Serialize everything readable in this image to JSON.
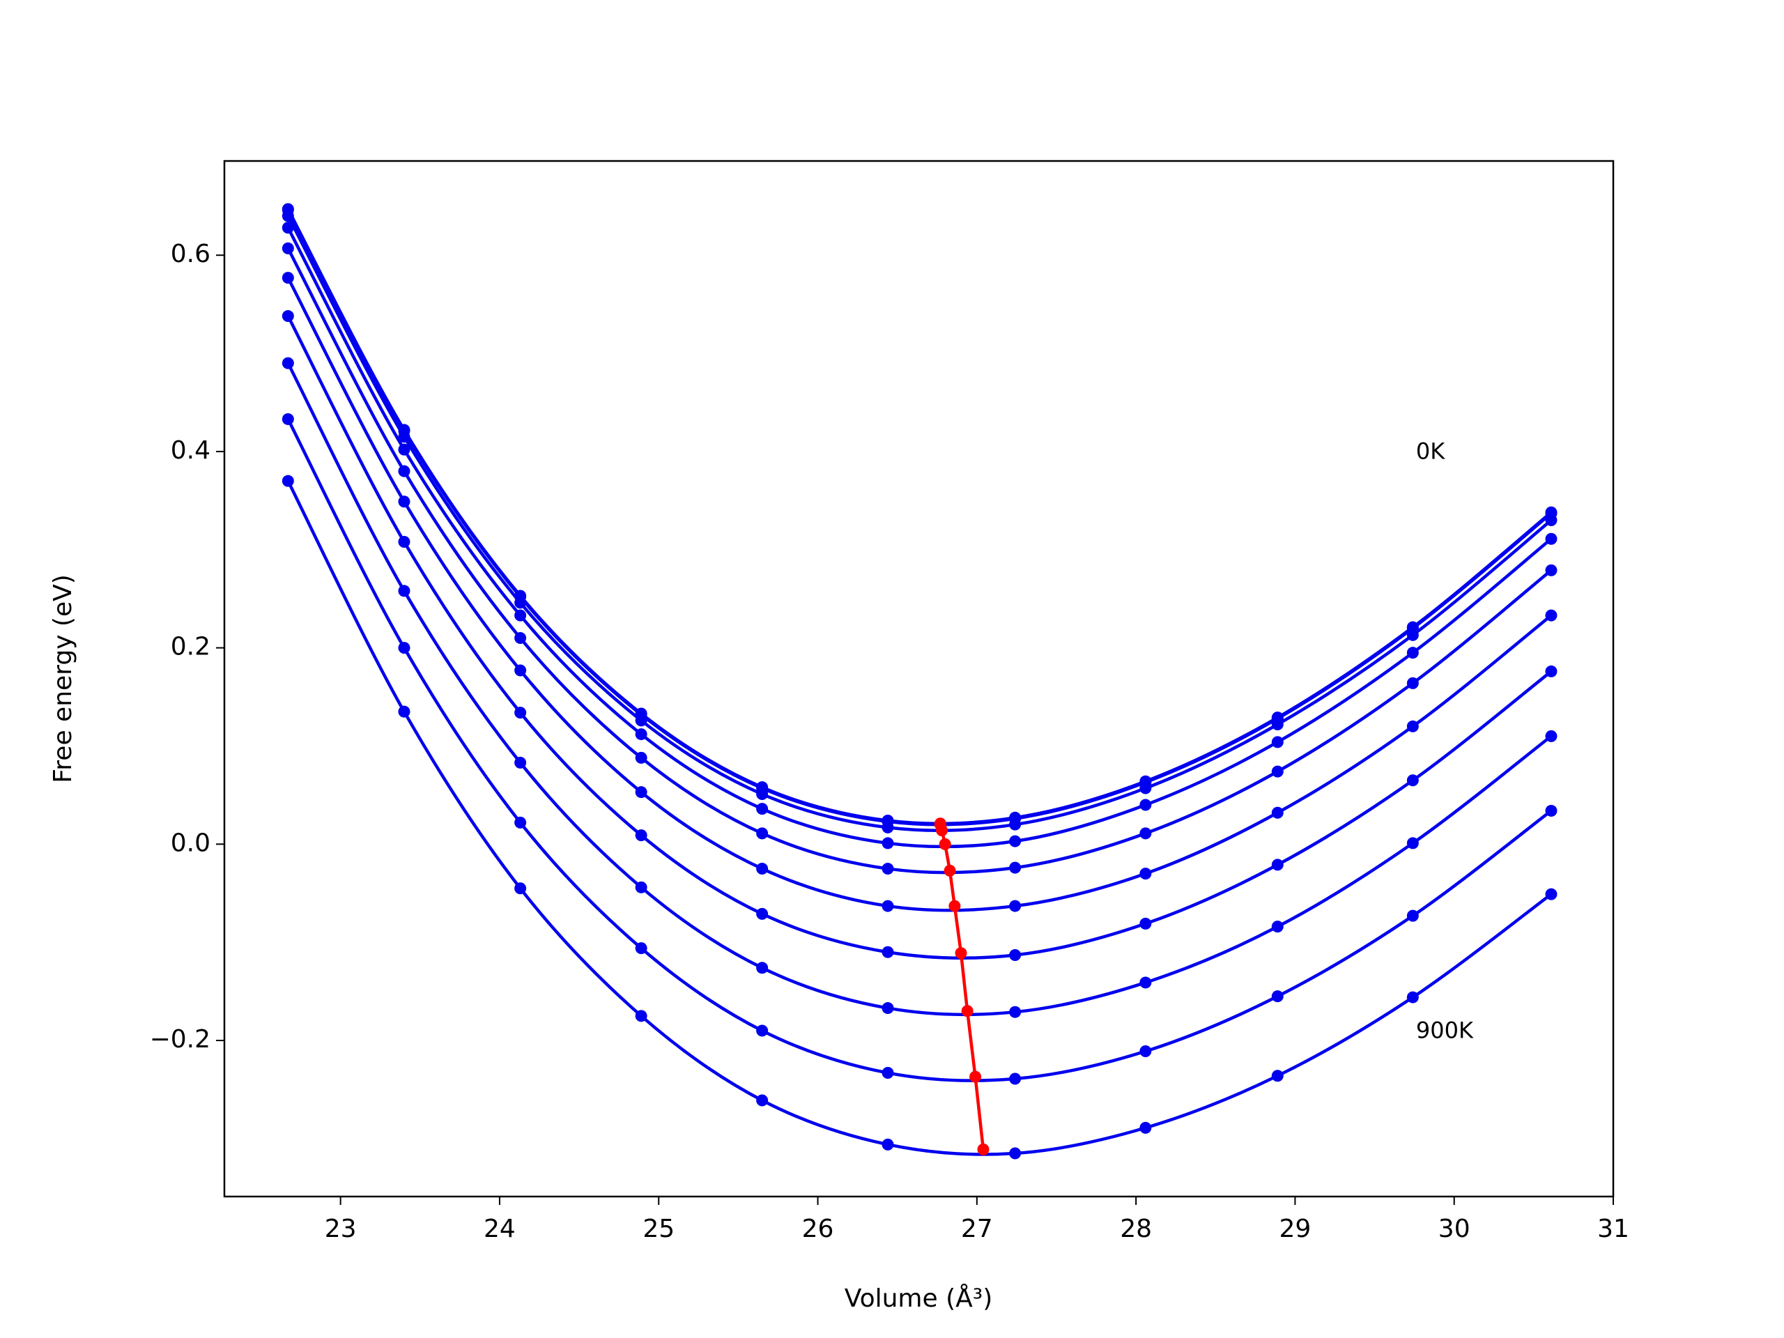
{
  "chart_data": {
    "type": "line",
    "xlabel": "Volume (Å³)",
    "ylabel": "Free energy (eV)",
    "xlim": [
      22.27,
      31.0
    ],
    "ylim": [
      -0.359,
      0.696
    ],
    "xticks": [
      23,
      24,
      25,
      26,
      27,
      28,
      29,
      30,
      31
    ],
    "yticks": [
      {
        "value": -0.2,
        "label": "−0.2"
      },
      {
        "value": 0,
        "label": "0.0"
      },
      0.2,
      0.4,
      0.6
    ],
    "x": [
      22.67,
      23.4,
      24.13,
      24.89,
      25.65,
      26.44,
      27.24,
      28.06,
      28.89,
      29.74,
      30.61
    ],
    "series": [
      {
        "color": "#0000ee",
        "values": [
          0.647,
          0.422,
          0.253,
          0.133,
          0.058,
          0.024,
          0.027,
          0.064,
          0.129,
          0.221,
          0.338
        ]
      },
      {
        "color": "#0000ee",
        "values": [
          0.646,
          0.421,
          0.252,
          0.132,
          0.057,
          0.023,
          0.026,
          0.063,
          0.128,
          0.22,
          0.337
        ]
      },
      {
        "color": "#0000ee",
        "values": [
          0.64,
          0.415,
          0.246,
          0.126,
          0.051,
          0.017,
          0.02,
          0.057,
          0.122,
          0.213,
          0.33
        ]
      },
      {
        "color": "#0000ee",
        "values": [
          0.628,
          0.402,
          0.233,
          0.112,
          0.036,
          0.001,
          0.003,
          0.04,
          0.104,
          0.195,
          0.311
        ]
      },
      {
        "color": "#0000ee",
        "values": [
          0.607,
          0.38,
          0.21,
          0.088,
          0.011,
          -0.025,
          -0.024,
          0.011,
          0.074,
          0.164,
          0.279
        ]
      },
      {
        "color": "#0000ee",
        "values": [
          0.577,
          0.349,
          0.177,
          0.053,
          -0.025,
          -0.063,
          -0.063,
          -0.03,
          0.032,
          0.12,
          0.233
        ]
      },
      {
        "color": "#0000ee",
        "values": [
          0.538,
          0.308,
          0.134,
          0.009,
          -0.071,
          -0.11,
          -0.113,
          -0.081,
          -0.021,
          0.065,
          0.176
        ]
      },
      {
        "color": "#0000ee",
        "values": [
          0.49,
          0.258,
          0.083,
          -0.044,
          -0.126,
          -0.167,
          -0.171,
          -0.141,
          -0.084,
          0.001,
          0.11
        ]
      },
      {
        "color": "#0000ee",
        "values": [
          0.433,
          0.2,
          0.022,
          -0.106,
          -0.19,
          -0.233,
          -0.239,
          -0.211,
          -0.155,
          -0.073,
          0.034
        ]
      },
      {
        "color": "#0000ee",
        "values": [
          0.37,
          0.135,
          -0.045,
          -0.175,
          -0.261,
          -0.306,
          -0.315,
          -0.289,
          -0.236,
          -0.156,
          -0.051
        ]
      }
    ],
    "minima": {
      "color": "#ff0000",
      "x": [
        26.77,
        26.77,
        26.78,
        26.8,
        26.83,
        26.86,
        26.9,
        26.94,
        26.99,
        27.04
      ],
      "values": [
        0.021,
        0.02,
        0.014,
        0.0,
        -0.027,
        -0.063,
        -0.111,
        -0.17,
        -0.237,
        -0.311
      ]
    },
    "annotations": [
      {
        "text": "0K",
        "x": 29.76,
        "y": 0.399
      },
      {
        "text": "900K",
        "x": 29.76,
        "y": -0.191
      }
    ]
  }
}
